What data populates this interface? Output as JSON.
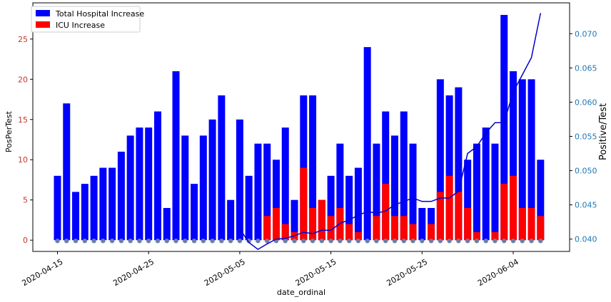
{
  "chart_data": {
    "type": "bar",
    "dates": [
      "2020-04-15",
      "2020-04-16",
      "2020-04-17",
      "2020-04-18",
      "2020-04-19",
      "2020-04-20",
      "2020-04-21",
      "2020-04-22",
      "2020-04-23",
      "2020-04-24",
      "2020-04-25",
      "2020-04-26",
      "2020-04-27",
      "2020-04-28",
      "2020-04-29",
      "2020-04-30",
      "2020-05-01",
      "2020-05-02",
      "2020-05-03",
      "2020-05-04",
      "2020-05-05",
      "2020-05-06",
      "2020-05-07",
      "2020-05-08",
      "2020-05-09",
      "2020-05-10",
      "2020-05-11",
      "2020-05-12",
      "2020-05-13",
      "2020-05-14",
      "2020-05-15",
      "2020-05-16",
      "2020-05-17",
      "2020-05-18",
      "2020-05-19",
      "2020-05-20",
      "2020-05-21",
      "2020-05-22",
      "2020-05-23",
      "2020-05-24",
      "2020-05-25",
      "2020-05-26",
      "2020-05-27",
      "2020-05-28",
      "2020-05-29",
      "2020-05-30",
      "2020-05-31",
      "2020-06-01",
      "2020-06-02",
      "2020-06-03",
      "2020-06-04",
      "2020-06-05",
      "2020-06-06",
      "2020-06-07"
    ],
    "series": [
      {
        "name": "Total Hospital Increase",
        "color": "#0000ff",
        "values": [
          8,
          17,
          6,
          7,
          8,
          9,
          9,
          11,
          13,
          14,
          14,
          16,
          4,
          21,
          13,
          7,
          13,
          15,
          18,
          5,
          15,
          8,
          12,
          12,
          10,
          14,
          5,
          18,
          18,
          5,
          8,
          12,
          8,
          9,
          24,
          12,
          16,
          13,
          16,
          12,
          4,
          4,
          20,
          18,
          19,
          10,
          12,
          14,
          12,
          28,
          21,
          20,
          20,
          10
        ]
      },
      {
        "name": "ICU Increase",
        "color": "#ff0000",
        "values": [
          0,
          0,
          0,
          0,
          0,
          0,
          0,
          0,
          0,
          0,
          0,
          0,
          0,
          0,
          0,
          0,
          0,
          0,
          0,
          0,
          0,
          0,
          0,
          3,
          4,
          2,
          1,
          9,
          4,
          5,
          3,
          4,
          2,
          1,
          0,
          3,
          7,
          3,
          3,
          2,
          0,
          2,
          6,
          8,
          6,
          4,
          1,
          0,
          1,
          7,
          8,
          4,
          4,
          3
        ]
      }
    ],
    "line": {
      "color": "#0000cc",
      "start_index": 20,
      "values": [
        0.0415,
        0.0395,
        0.0385,
        0.0393,
        0.04,
        0.0401,
        0.0405,
        0.041,
        0.0408,
        0.0413,
        0.0413,
        0.0423,
        0.0428,
        0.0435,
        0.044,
        0.0438,
        0.0441,
        0.045,
        0.0455,
        0.046,
        0.0455,
        0.0455,
        0.046,
        0.046,
        0.047,
        0.0525,
        0.0535,
        0.0555,
        0.057,
        0.057,
        0.0615,
        0.064,
        0.0665,
        0.073
      ]
    },
    "scatter_zero_color": "#6a7fa8",
    "xlabel": "date_ordinal",
    "ylabel": "PosPerTest",
    "y2label": "Positive/Test",
    "ylim": [
      -1.4,
      29.5
    ],
    "y2lim": [
      0.0382,
      0.0745
    ],
    "yticks": [
      0,
      5,
      10,
      15,
      20,
      25
    ],
    "y2ticks": [
      0.04,
      0.045,
      0.05,
      0.055,
      0.06,
      0.065,
      0.07
    ],
    "xtick_labels": [
      "2020-04-15",
      "2020-04-25",
      "2020-05-05",
      "2020-05-15",
      "2020-05-25",
      "2020-06-04"
    ],
    "left_tick_color": "#c0392b",
    "right_tick_color": "#1f77b4",
    "legend_position": "upper-left"
  }
}
